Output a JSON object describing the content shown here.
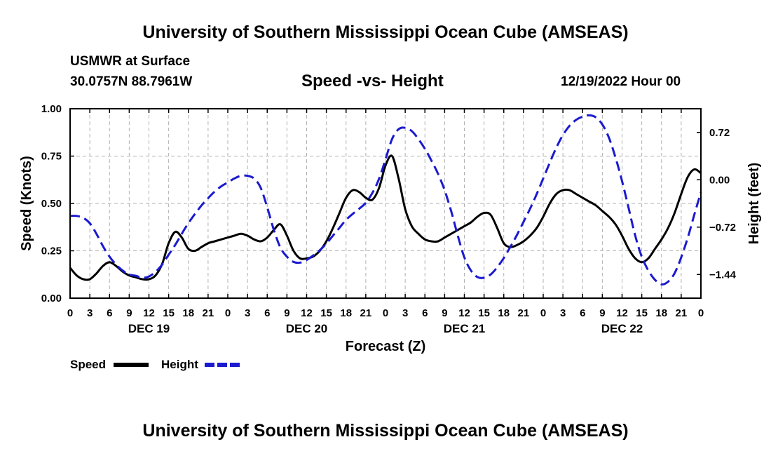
{
  "page": {
    "title_top": "University of Southern Mississippi Ocean Cube (AMSEAS)",
    "title_bottom": "University of Southern Mississippi Ocean Cube (AMSEAS)",
    "station": "USMWR at Surface",
    "coords": "30.0757N  88.7961W",
    "chart_title": "Speed -vs- Height",
    "date": "12/19/2022 Hour 00"
  },
  "chart_data": {
    "type": "line",
    "title": "Speed -vs- Height",
    "xlabel": "Forecast (Z)",
    "ylabel": "Speed (Knots)",
    "y2label": "Height (feet)",
    "xlim": [
      0,
      96
    ],
    "ylim": [
      0,
      1
    ],
    "y2lim": [
      -1.8,
      1.08
    ],
    "x_ticks": [
      0,
      3,
      6,
      9,
      12,
      15,
      18,
      21,
      24,
      27,
      30,
      33,
      36,
      39,
      42,
      45,
      48,
      51,
      54,
      57,
      60,
      63,
      66,
      69,
      72,
      75,
      78,
      81,
      84,
      87,
      90,
      93,
      96
    ],
    "x_tick_labels": [
      "0",
      "3",
      "6",
      "9",
      "12",
      "15",
      "18",
      "21",
      "0",
      "3",
      "6",
      "9",
      "12",
      "15",
      "18",
      "21",
      "0",
      "3",
      "6",
      "9",
      "12",
      "15",
      "18",
      "21",
      "0",
      "3",
      "6",
      "9",
      "12",
      "15",
      "18",
      "21",
      "0"
    ],
    "y_ticks": [
      0,
      0.25,
      0.5,
      0.75,
      1.0
    ],
    "y_tick_labels": [
      "0.00",
      "0.25",
      "0.50",
      "0.75",
      "1.00"
    ],
    "y2_ticks": [
      0.72,
      0.0,
      -0.72,
      -1.44
    ],
    "y2_tick_labels": [
      "0.72",
      "0.00",
      "−0.72",
      "−1.44"
    ],
    "day_labels": [
      {
        "x": 12,
        "label": "DEC 19"
      },
      {
        "x": 36,
        "label": "DEC 20"
      },
      {
        "x": 60,
        "label": "DEC 21"
      },
      {
        "x": 84,
        "label": "DEC 22"
      }
    ],
    "grid": true,
    "legend": [
      {
        "name": "Speed",
        "color": "#000000",
        "dash": "solid"
      },
      {
        "name": "Height",
        "color": "#1a1ad0",
        "dash": "dashed"
      }
    ],
    "series": [
      {
        "name": "Speed",
        "axis": "left",
        "color": "#000000",
        "x": [
          0,
          1,
          2,
          3,
          4,
          5,
          6,
          7,
          8,
          9,
          10,
          11,
          12,
          13,
          14,
          15,
          16,
          17,
          18,
          19,
          20,
          21,
          22,
          23,
          24,
          25,
          26,
          27,
          28,
          29,
          30,
          31,
          32,
          33,
          34,
          35,
          36,
          37,
          38,
          39,
          40,
          41,
          42,
          43,
          44,
          45,
          46,
          47,
          48,
          49,
          50,
          51,
          52,
          53,
          54,
          55,
          56,
          57,
          58,
          59,
          60,
          61,
          62,
          63,
          64,
          65,
          66,
          67,
          68,
          69,
          70,
          71,
          72,
          73,
          74,
          75,
          76,
          77,
          78,
          79,
          80,
          81,
          82,
          83,
          84,
          85,
          86,
          87,
          88,
          89,
          90,
          91,
          92,
          93,
          94,
          95,
          96
        ],
        "y": [
          0.16,
          0.12,
          0.1,
          0.1,
          0.13,
          0.17,
          0.19,
          0.17,
          0.14,
          0.12,
          0.11,
          0.1,
          0.1,
          0.12,
          0.18,
          0.29,
          0.35,
          0.32,
          0.26,
          0.25,
          0.27,
          0.29,
          0.3,
          0.31,
          0.32,
          0.33,
          0.34,
          0.33,
          0.31,
          0.3,
          0.32,
          0.36,
          0.39,
          0.33,
          0.25,
          0.21,
          0.21,
          0.22,
          0.25,
          0.3,
          0.37,
          0.45,
          0.53,
          0.57,
          0.56,
          0.53,
          0.52,
          0.58,
          0.7,
          0.75,
          0.63,
          0.47,
          0.38,
          0.34,
          0.31,
          0.3,
          0.3,
          0.32,
          0.34,
          0.36,
          0.38,
          0.4,
          0.43,
          0.45,
          0.44,
          0.37,
          0.29,
          0.27,
          0.28,
          0.3,
          0.33,
          0.37,
          0.43,
          0.5,
          0.55,
          0.57,
          0.57,
          0.55,
          0.53,
          0.51,
          0.49,
          0.46,
          0.43,
          0.39,
          0.33,
          0.26,
          0.21,
          0.19,
          0.21,
          0.26,
          0.31,
          0.37,
          0.45,
          0.55,
          0.64,
          0.68,
          0.66
        ]
      },
      {
        "name": "Height",
        "axis": "right",
        "color": "#1a1ad0",
        "x": [
          0,
          1,
          2,
          3,
          4,
          5,
          6,
          7,
          8,
          9,
          10,
          11,
          12,
          13,
          14,
          15,
          16,
          17,
          18,
          19,
          20,
          21,
          22,
          23,
          24,
          25,
          26,
          27,
          28,
          29,
          30,
          31,
          32,
          33,
          34,
          35,
          36,
          37,
          38,
          39,
          40,
          41,
          42,
          43,
          44,
          45,
          46,
          47,
          48,
          49,
          50,
          51,
          52,
          53,
          54,
          55,
          56,
          57,
          58,
          59,
          60,
          61,
          62,
          63,
          64,
          65,
          66,
          67,
          68,
          69,
          70,
          71,
          72,
          73,
          74,
          75,
          76,
          77,
          78,
          79,
          80,
          81,
          82,
          83,
          84,
          85,
          86,
          87,
          88,
          89,
          90,
          91,
          92,
          93,
          94,
          95,
          96
        ],
        "y": [
          -0.55,
          -0.55,
          -0.58,
          -0.66,
          -0.82,
          -1.01,
          -1.17,
          -1.29,
          -1.38,
          -1.44,
          -1.46,
          -1.49,
          -1.47,
          -1.4,
          -1.29,
          -1.14,
          -0.99,
          -0.82,
          -0.66,
          -0.52,
          -0.39,
          -0.28,
          -0.18,
          -0.1,
          -0.04,
          0.02,
          0.06,
          0.06,
          0.02,
          -0.12,
          -0.42,
          -0.76,
          -1.03,
          -1.17,
          -1.25,
          -1.26,
          -1.22,
          -1.15,
          -1.07,
          -0.97,
          -0.85,
          -0.73,
          -0.61,
          -0.52,
          -0.44,
          -0.35,
          -0.2,
          0.01,
          0.31,
          0.62,
          0.77,
          0.79,
          0.74,
          0.62,
          0.47,
          0.29,
          0.09,
          -0.16,
          -0.48,
          -0.85,
          -1.18,
          -1.38,
          -1.48,
          -1.49,
          -1.44,
          -1.33,
          -1.19,
          -1.02,
          -0.84,
          -0.64,
          -0.44,
          -0.22,
          0.02,
          0.26,
          0.49,
          0.68,
          0.82,
          0.91,
          0.96,
          0.98,
          0.95,
          0.84,
          0.64,
          0.34,
          -0.02,
          -0.43,
          -0.85,
          -1.17,
          -1.38,
          -1.52,
          -1.59,
          -1.55,
          -1.42,
          -1.18,
          -0.88,
          -0.53,
          -0.19
        ]
      }
    ]
  }
}
